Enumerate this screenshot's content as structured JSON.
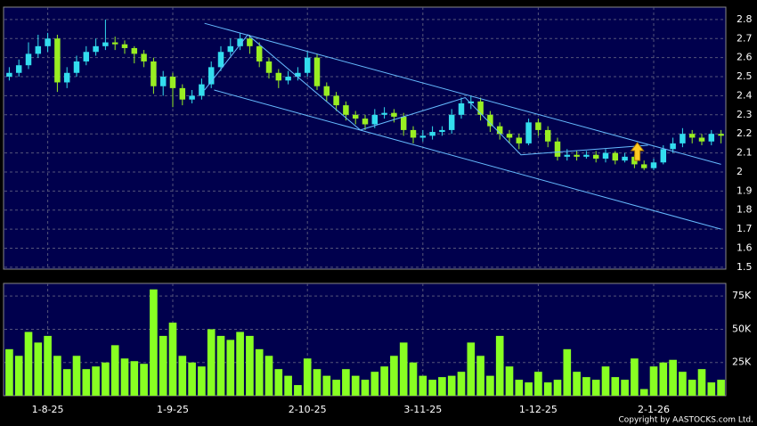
{
  "chart_data": {
    "type": "candlestick",
    "categories": [
      null,
      null,
      null,
      null,
      "1-8-25",
      null,
      null,
      null,
      null,
      null,
      null,
      null,
      null,
      null,
      null,
      null,
      null,
      "1-9-25",
      null,
      null,
      null,
      null,
      null,
      null,
      null,
      null,
      null,
      null,
      null,
      null,
      null,
      "2-10-25",
      null,
      null,
      null,
      null,
      null,
      null,
      null,
      null,
      null,
      null,
      null,
      "3-11-25",
      null,
      null,
      null,
      null,
      null,
      null,
      null,
      null,
      null,
      null,
      null,
      "1-12-25",
      null,
      null,
      null,
      null,
      null,
      null,
      null,
      null,
      null,
      null,
      null,
      "2-1-26",
      null,
      null,
      null,
      null,
      null,
      null,
      null
    ],
    "open": [
      2.5,
      2.52,
      2.56,
      2.62,
      2.66,
      2.7,
      2.47,
      2.52,
      2.58,
      2.63,
      2.66,
      2.68,
      2.67,
      2.65,
      2.62,
      2.58,
      2.45,
      2.5,
      2.44,
      2.38,
      2.4,
      2.46,
      2.55,
      2.63,
      2.66,
      2.7,
      2.66,
      2.58,
      2.52,
      2.48,
      2.5,
      2.52,
      2.6,
      2.45,
      2.4,
      2.35,
      2.3,
      2.28,
      2.25,
      2.3,
      2.31,
      2.29,
      2.22,
      2.18,
      2.19,
      2.21,
      2.22,
      2.3,
      2.36,
      2.37,
      2.3,
      2.24,
      2.2,
      2.18,
      2.15,
      2.26,
      2.22,
      2.16,
      2.08,
      2.09,
      2.08,
      2.09,
      2.07,
      2.1,
      2.06,
      2.08,
      2.04,
      2.02,
      2.05,
      2.12,
      2.15,
      2.2,
      2.18,
      2.16,
      2.2
    ],
    "high": [
      2.55,
      2.59,
      2.68,
      2.72,
      2.73,
      2.72,
      2.55,
      2.61,
      2.66,
      2.7,
      2.8,
      2.71,
      2.69,
      2.66,
      2.64,
      2.6,
      2.53,
      2.52,
      2.46,
      2.43,
      2.49,
      2.58,
      2.66,
      2.7,
      2.73,
      2.72,
      2.68,
      2.6,
      2.54,
      2.53,
      2.55,
      2.63,
      2.62,
      2.47,
      2.42,
      2.37,
      2.32,
      2.3,
      2.33,
      2.34,
      2.33,
      2.31,
      2.24,
      2.22,
      2.24,
      2.24,
      2.33,
      2.39,
      2.4,
      2.39,
      2.32,
      2.26,
      2.22,
      2.2,
      2.28,
      2.28,
      2.24,
      2.18,
      2.12,
      2.11,
      2.11,
      2.11,
      2.12,
      2.11,
      2.1,
      2.09,
      2.06,
      2.07,
      2.14,
      2.18,
      2.23,
      2.22,
      2.2,
      2.22,
      2.22
    ],
    "low": [
      2.48,
      2.5,
      2.54,
      2.6,
      2.63,
      2.42,
      2.44,
      2.5,
      2.56,
      2.61,
      2.64,
      2.64,
      2.62,
      2.57,
      2.55,
      2.41,
      2.4,
      2.34,
      2.35,
      2.36,
      2.38,
      2.44,
      2.53,
      2.61,
      2.64,
      2.62,
      2.55,
      2.49,
      2.44,
      2.46,
      2.48,
      2.5,
      2.43,
      2.37,
      2.32,
      2.27,
      2.25,
      2.22,
      2.23,
      2.28,
      2.26,
      2.19,
      2.15,
      2.16,
      2.17,
      2.19,
      2.2,
      2.28,
      2.33,
      2.27,
      2.21,
      2.17,
      2.15,
      2.12,
      2.14,
      2.19,
      2.13,
      2.06,
      2.06,
      2.06,
      2.07,
      2.05,
      2.05,
      2.04,
      2.05,
      2.02,
      2.01,
      2.01,
      2.04,
      2.1,
      2.13,
      2.15,
      2.14,
      2.14,
      2.15
    ],
    "close": [
      2.52,
      2.56,
      2.62,
      2.66,
      2.7,
      2.47,
      2.52,
      2.58,
      2.63,
      2.66,
      2.68,
      2.67,
      2.65,
      2.62,
      2.58,
      2.45,
      2.5,
      2.44,
      2.38,
      2.4,
      2.46,
      2.55,
      2.63,
      2.66,
      2.7,
      2.66,
      2.58,
      2.52,
      2.48,
      2.5,
      2.52,
      2.6,
      2.45,
      2.4,
      2.35,
      2.3,
      2.28,
      2.25,
      2.3,
      2.31,
      2.29,
      2.22,
      2.18,
      2.19,
      2.21,
      2.22,
      2.3,
      2.36,
      2.37,
      2.3,
      2.24,
      2.2,
      2.18,
      2.15,
      2.26,
      2.22,
      2.16,
      2.08,
      2.09,
      2.08,
      2.09,
      2.07,
      2.1,
      2.06,
      2.08,
      2.04,
      2.02,
      2.05,
      2.12,
      2.15,
      2.2,
      2.18,
      2.16,
      2.2,
      2.19
    ],
    "volume": [
      35000,
      30000,
      48000,
      40000,
      45000,
      30000,
      20000,
      30000,
      20000,
      22000,
      25000,
      38000,
      28000,
      26000,
      24000,
      80000,
      45000,
      55000,
      30000,
      25000,
      22000,
      50000,
      45000,
      42000,
      48000,
      45000,
      35000,
      30000,
      20000,
      15000,
      8000,
      28000,
      20000,
      15000,
      12000,
      20000,
      15000,
      12000,
      18000,
      22000,
      30000,
      40000,
      25000,
      15000,
      12000,
      14000,
      15000,
      18000,
      40000,
      30000,
      15000,
      45000,
      22000,
      12000,
      10000,
      18000,
      10000,
      12000,
      35000,
      18000,
      14000,
      12000,
      22000,
      14000,
      12000,
      28000,
      5000,
      22000,
      25000,
      27000,
      18000,
      12000,
      20000,
      10000,
      12000
    ],
    "up_color": "#33ddee",
    "down_color": "#99ee22",
    "volume_color": "#88ff22",
    "ylim": [
      1.49,
      2.865
    ],
    "yticks": [
      1.5,
      1.6,
      1.7,
      1.8,
      1.9,
      2,
      2.1,
      2.2,
      2.3,
      2.4,
      2.5,
      2.6,
      2.7,
      2.8
    ],
    "y2lim": [
      0,
      84500
    ],
    "y2ticks": [
      {
        "value": 25000,
        "label": "25K"
      },
      {
        "value": 50000,
        "label": "50K"
      },
      {
        "value": 75000,
        "label": "75K"
      }
    ],
    "grid": true,
    "trendlines": [
      {
        "color": "#66bbff",
        "points": [
          [
            20.3,
            2.78
          ],
          [
            74,
            2.04
          ]
        ]
      },
      {
        "color": "#66bbff",
        "points": [
          [
            21.3,
            2.43
          ],
          [
            74,
            1.7
          ]
        ]
      },
      {
        "color": "#66bbff",
        "points": [
          [
            20.3,
            2.43
          ],
          [
            24.8,
            2.72
          ],
          [
            36.5,
            2.22
          ],
          [
            47.4,
            2.39
          ],
          [
            53.2,
            2.09
          ],
          [
            66.4,
            2.14
          ]
        ]
      }
    ],
    "copyright": "Copyright by AASTOCKS.com Ltd."
  }
}
